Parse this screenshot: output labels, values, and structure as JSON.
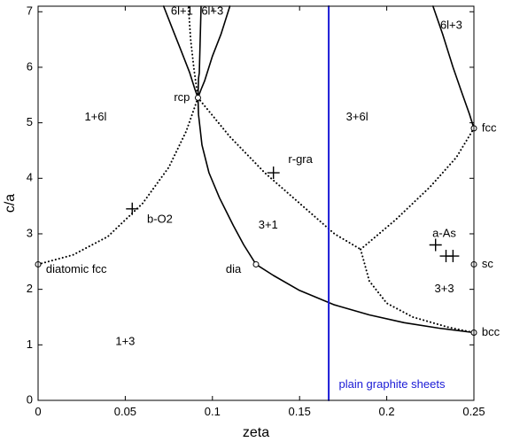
{
  "chart_data": {
    "type": "line",
    "xlabel": "zeta",
    "ylabel": "c/a",
    "xlim": [
      0,
      0.25
    ],
    "ylim": [
      0,
      7.1
    ],
    "x_ticks": [
      0,
      0.05,
      0.1,
      0.15,
      0.2,
      0.25
    ],
    "x_tick_labels": [
      "0",
      "0.05",
      "0.1",
      "0.15",
      "0.2",
      "0.25"
    ],
    "y_ticks": [
      0,
      1,
      2,
      3,
      4,
      5,
      6,
      7
    ],
    "y_tick_labels": [
      "0",
      "1",
      "2",
      "3",
      "4",
      "5",
      "6",
      "7"
    ],
    "grid": false,
    "series": [
      {
        "style": "solid",
        "color": "#000000",
        "points": [
          [
            0.0935,
            7.1
          ],
          [
            0.0925,
            5.9
          ],
          [
            0.092,
            5.8
          ],
          [
            0.0917,
            5.45
          ],
          [
            0.092,
            5.15
          ],
          [
            0.094,
            4.6
          ],
          [
            0.098,
            4.1
          ],
          [
            0.104,
            3.65
          ],
          [
            0.112,
            3.15
          ],
          [
            0.118,
            2.8
          ],
          [
            0.125,
            2.45
          ]
        ]
      },
      {
        "style": "solid",
        "color": "#000000",
        "points": [
          [
            0.0917,
            5.45
          ],
          [
            0.0935,
            5.6
          ],
          [
            0.0955,
            5.75
          ],
          [
            0.1,
            6.2
          ],
          [
            0.105,
            6.6
          ],
          [
            0.11,
            7.1
          ]
        ]
      },
      {
        "style": "solid",
        "color": "#000000",
        "points": [
          [
            0.0917,
            5.45
          ],
          [
            0.09,
            5.6
          ],
          [
            0.087,
            5.9
          ],
          [
            0.082,
            6.3
          ],
          [
            0.077,
            6.7
          ],
          [
            0.072,
            7.1
          ]
        ]
      },
      {
        "style": "solid",
        "color": "#000000",
        "points": [
          [
            0.125,
            2.45
          ],
          [
            0.135,
            2.25
          ],
          [
            0.15,
            1.98
          ],
          [
            0.17,
            1.72
          ],
          [
            0.19,
            1.54
          ],
          [
            0.21,
            1.4
          ],
          [
            0.23,
            1.3
          ],
          [
            0.25,
            1.22
          ]
        ]
      },
      {
        "style": "solid",
        "color": "#000000",
        "points": [
          [
            0.2265,
            7.1
          ],
          [
            0.232,
            6.6
          ],
          [
            0.238,
            6.0
          ],
          [
            0.243,
            5.55
          ],
          [
            0.2475,
            5.15
          ],
          [
            0.25,
            4.9
          ]
        ]
      },
      {
        "style": "dotted",
        "color": "#000000",
        "points": [
          [
            0,
            2.45
          ],
          [
            0.02,
            2.62
          ],
          [
            0.04,
            2.95
          ],
          [
            0.06,
            3.55
          ],
          [
            0.075,
            4.2
          ],
          [
            0.085,
            4.85
          ],
          [
            0.0917,
            5.45
          ]
        ]
      },
      {
        "style": "dotted",
        "color": "#000000",
        "points": [
          [
            0.0917,
            5.45
          ],
          [
            0.11,
            4.75
          ],
          [
            0.13,
            4.1
          ],
          [
            0.15,
            3.55
          ],
          [
            0.17,
            3.0
          ],
          [
            0.185,
            2.72
          ]
        ]
      },
      {
        "style": "dotted",
        "color": "#000000",
        "points": [
          [
            0.185,
            2.72
          ],
          [
            0.205,
            3.25
          ],
          [
            0.225,
            3.85
          ],
          [
            0.24,
            4.38
          ],
          [
            0.25,
            4.9
          ]
        ]
      },
      {
        "style": "dotted",
        "color": "#000000",
        "points": [
          [
            0.185,
            2.72
          ],
          [
            0.19,
            2.15
          ],
          [
            0.2,
            1.75
          ],
          [
            0.215,
            1.5
          ],
          [
            0.235,
            1.32
          ],
          [
            0.25,
            1.22
          ]
        ]
      },
      {
        "style": "dotted",
        "color": "#000000",
        "points": [
          [
            0.0917,
            5.45
          ],
          [
            0.0895,
            5.95
          ],
          [
            0.0875,
            6.5
          ],
          [
            0.0863,
            7.1
          ]
        ]
      },
      {
        "style": "solid",
        "color": "#1a1ad6",
        "points": [
          [
            0.1667,
            0
          ],
          [
            0.1667,
            7.1
          ]
        ]
      }
    ],
    "markers_circle": [
      {
        "x": 0,
        "y": 2.45
      },
      {
        "x": 0.0917,
        "y": 5.45
      },
      {
        "x": 0.125,
        "y": 2.45
      },
      {
        "x": 0.25,
        "y": 4.9
      },
      {
        "x": 0.25,
        "y": 2.45
      },
      {
        "x": 0.25,
        "y": 1.22
      }
    ],
    "markers_plus": [
      {
        "x": 0.054,
        "y": 3.45
      },
      {
        "x": 0.135,
        "y": 4.1
      },
      {
        "x": 0.228,
        "y": 2.8
      },
      {
        "x": 0.234,
        "y": 2.6
      },
      {
        "x": 0.238,
        "y": 2.6
      }
    ],
    "annotations": [
      {
        "text": "6l+1",
        "x": 0.0825,
        "y": 7.0,
        "anchor": "middle",
        "cls": "region-label"
      },
      {
        "text": "6l+3",
        "x": 0.1,
        "y": 7.0,
        "anchor": "middle",
        "cls": "region-label"
      },
      {
        "text": "6l+3",
        "x": 0.237,
        "y": 6.75,
        "anchor": "middle",
        "cls": "region-label"
      },
      {
        "text": "rcp",
        "x": 0.0825,
        "y": 5.45,
        "anchor": "middle",
        "cls": "point-label"
      },
      {
        "text": "1+6l",
        "x": 0.033,
        "y": 5.1,
        "anchor": "middle",
        "cls": "region-label"
      },
      {
        "text": "3+6l",
        "x": 0.183,
        "y": 5.1,
        "anchor": "middle",
        "cls": "region-label"
      },
      {
        "text": "fcc",
        "x": 0.2545,
        "y": 4.9,
        "anchor": "start",
        "cls": "point-label"
      },
      {
        "text": "r-gra",
        "x": 0.1435,
        "y": 4.33,
        "anchor": "start",
        "cls": "point-label"
      },
      {
        "text": "b-O2",
        "x": 0.0625,
        "y": 3.25,
        "anchor": "start",
        "cls": "point-label"
      },
      {
        "text": "3+1",
        "x": 0.132,
        "y": 3.15,
        "anchor": "middle",
        "cls": "region-label"
      },
      {
        "text": "a-As",
        "x": 0.233,
        "y": 3.0,
        "anchor": "middle",
        "cls": "point-label"
      },
      {
        "text": "diatomic fcc",
        "x": 0.0045,
        "y": 2.35,
        "anchor": "start",
        "cls": "point-label"
      },
      {
        "text": "dia",
        "x": 0.1165,
        "y": 2.35,
        "anchor": "end",
        "cls": "point-label"
      },
      {
        "text": "sc",
        "x": 0.2545,
        "y": 2.45,
        "anchor": "start",
        "cls": "point-label"
      },
      {
        "text": "3+3",
        "x": 0.233,
        "y": 2.0,
        "anchor": "middle",
        "cls": "region-label"
      },
      {
        "text": "bcc",
        "x": 0.2545,
        "y": 1.22,
        "anchor": "start",
        "cls": "point-label"
      },
      {
        "text": "1+3",
        "x": 0.05,
        "y": 1.05,
        "anchor": "middle",
        "cls": "region-label"
      },
      {
        "text": "plain graphite sheets",
        "x": 0.1725,
        "y": 0.28,
        "anchor": "start",
        "cls": "blue-label"
      }
    ]
  }
}
